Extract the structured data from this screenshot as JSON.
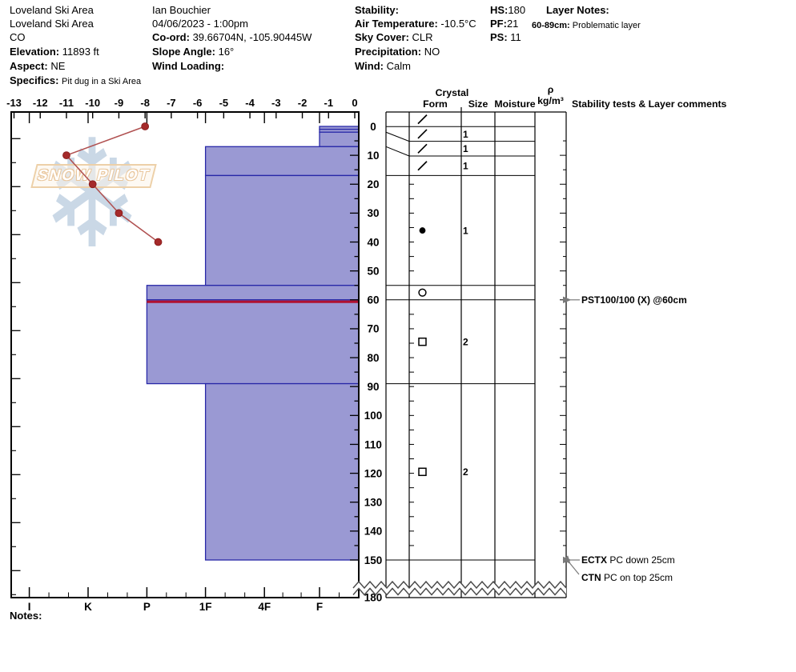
{
  "header": {
    "col1": {
      "site": "Loveland Ski Area",
      "area": "Loveland Ski Area",
      "state": "CO",
      "elevation_label": "Elevation:",
      "elevation": "11893 ft",
      "aspect_label": "Aspect:",
      "aspect": "NE",
      "specifics_label": "Specifics:",
      "specifics": "Pit dug in a Ski Area"
    },
    "col2": {
      "observer": "Ian Bouchier",
      "datetime": "04/06/2023 - 1:00pm",
      "coord_label": "Co-ord:",
      "coord": "39.66704N, -105.90445W",
      "slope_label": "Slope Angle:",
      "slope": "16°",
      "wind_loading_label": "Wind Loading:"
    },
    "col3": {
      "stability_label": "Stability:",
      "air_temp_label": "Air Temperature:",
      "air_temp": "-10.5°C",
      "sky_label": "Sky Cover:",
      "sky": "CLR",
      "precip_label": "Precipitation:",
      "precip": "NO",
      "wind_label": "Wind:",
      "wind": "Calm"
    },
    "col4": {
      "hs_label": "HS:",
      "hs": "180",
      "pf_label": "PF:",
      "pf": "21",
      "ps_label": "PS:",
      "ps": "11"
    },
    "col5": {
      "layer_notes_label": "Layer Notes:",
      "note1_label": "60-89cm:",
      "note1": "Problematic layer"
    }
  },
  "watermark": {
    "brand": "SNOW PILOT",
    "flake": "❄"
  },
  "chart_data": {
    "type": "snow-pit-profile (hardness bars + temperature line)",
    "temperature_axis": {
      "unit": "°C",
      "min": -13,
      "max": 0,
      "step": 1
    },
    "depth_axis": {
      "unit": "cm",
      "surface": 0,
      "profile_bottom": 150,
      "total_depth": 180,
      "label_step": 10
    },
    "hardness_axis": {
      "categories": [
        "I",
        "K",
        "P",
        "1F",
        "4F",
        "F"
      ]
    },
    "temperature_profile": {
      "name": "Snow temperature (°C) vs depth (cm)",
      "points": [
        {
          "depth": 0,
          "temp": -8
        },
        {
          "depth": 10,
          "temp": -11
        },
        {
          "depth": 20,
          "temp": -10
        },
        {
          "depth": 30,
          "temp": -9
        },
        {
          "depth": 40,
          "temp": -7.5
        }
      ]
    },
    "layers": [
      {
        "top_cm": 0,
        "bottom_cm": 1,
        "hardness": "F",
        "grain_form": "slash",
        "grain_size": ""
      },
      {
        "top_cm": 1,
        "bottom_cm": 2,
        "hardness": "F",
        "grain_form": "slash",
        "grain_size": "1"
      },
      {
        "top_cm": 2,
        "bottom_cm": 7,
        "hardness": "F",
        "grain_form": "slash",
        "grain_size": "1"
      },
      {
        "top_cm": 7,
        "bottom_cm": 17,
        "hardness": "1F",
        "grain_form": "slash",
        "grain_size": "1"
      },
      {
        "top_cm": 17,
        "bottom_cm": 55,
        "hardness": "1F",
        "grain_form": "filled-circle",
        "grain_size": "1"
      },
      {
        "top_cm": 55,
        "bottom_cm": 60,
        "hardness": "P",
        "grain_form": "open-circle",
        "grain_size": ""
      },
      {
        "top_cm": 60,
        "bottom_cm": 89,
        "hardness": "P",
        "grain_form": "open-square",
        "grain_size": "2",
        "flagged": true
      },
      {
        "top_cm": 89,
        "bottom_cm": 150,
        "hardness": "1F",
        "grain_form": "open-square",
        "grain_size": "2"
      }
    ],
    "colors": {
      "bar_fill": "#9a99d3",
      "bar_border": "#2828a8",
      "flag_line": "#b01030",
      "temp_line": "#b05050",
      "temp_marker": "#a52a2a",
      "arrow": "#7a7a7a"
    }
  },
  "profile_table": {
    "crystal": "Crystal",
    "form": "Form",
    "size": "Size",
    "moisture": "Moisture",
    "rho": "ρ",
    "rho_unit": "kg/m³",
    "stability_header": "Stability tests & Layer comments"
  },
  "stability_tests": [
    {
      "depth_cm": 60,
      "bold": "PST100/100 (X) @60cm",
      "text": "",
      "diagonal": false
    },
    {
      "depth_cm": 150,
      "bold": "ECTX",
      "text": "  PC down 25cm",
      "diagonal": false
    },
    {
      "depth_cm": 150,
      "bold": "CTN",
      "text": "  PC on top 25cm",
      "diagonal": true
    }
  ],
  "notes": {
    "label": "Notes:"
  }
}
